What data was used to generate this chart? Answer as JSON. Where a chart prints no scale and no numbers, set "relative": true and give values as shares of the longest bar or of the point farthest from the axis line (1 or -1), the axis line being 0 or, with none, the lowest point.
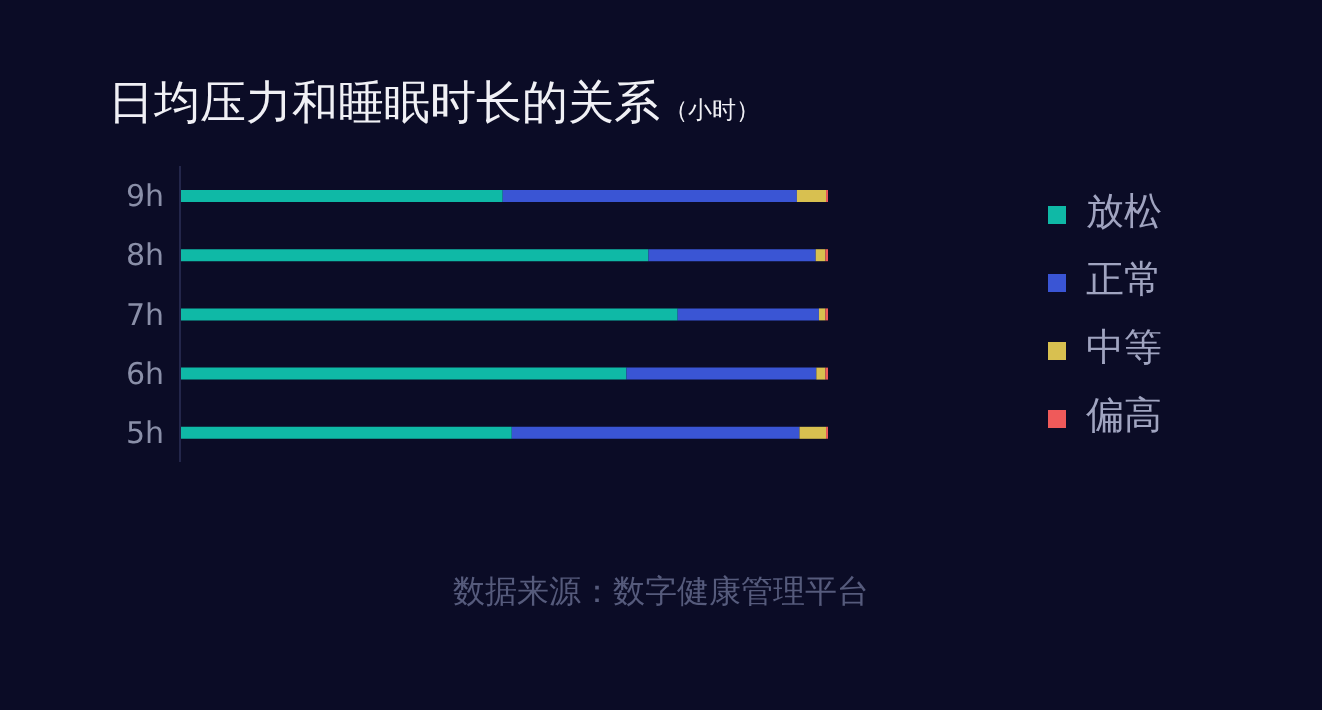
{
  "chart_data": {
    "type": "bar",
    "orientation": "horizontal",
    "stacked": true,
    "relative": true,
    "title": "日均压力和睡眠时长的关系",
    "subtitle": "（小时）",
    "annotations": [
      "数据来源：数字健康管理平台"
    ],
    "categories": [
      "9h",
      "8h",
      "7h",
      "6h",
      "5h"
    ],
    "series": [
      {
        "name": "放松",
        "color": "#0fb9a6",
        "values": [
          0.498,
          0.723,
          0.768,
          0.689,
          0.512
        ]
      },
      {
        "name": "正常",
        "color": "#3a55d4",
        "values": [
          0.454,
          0.258,
          0.218,
          0.293,
          0.444
        ]
      },
      {
        "name": "中等",
        "color": "#d8c050",
        "values": [
          0.045,
          0.015,
          0.01,
          0.014,
          0.041
        ]
      },
      {
        "name": "偏高",
        "color": "#ef5a5a",
        "values": [
          0.003,
          0.004,
          0.004,
          0.004,
          0.003
        ]
      }
    ],
    "legend": "right",
    "grid": false
  }
}
